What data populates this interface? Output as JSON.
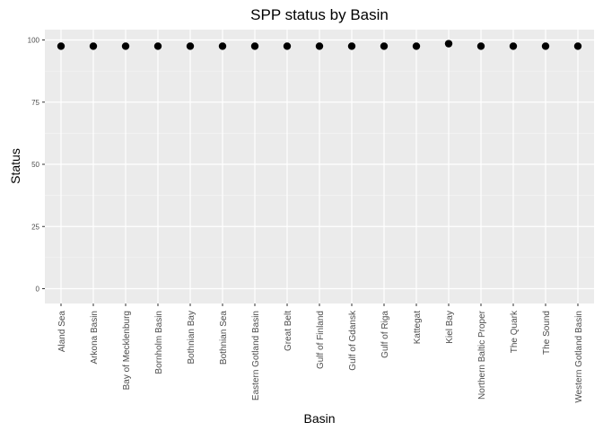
{
  "chart_data": {
    "type": "scatter",
    "title": "SPP status by Basin",
    "xlabel": "Basin",
    "ylabel": "Status",
    "categories": [
      "Aland Sea",
      "Arkona Basin",
      "Bay of Mecklenburg",
      "Bornholm Basin",
      "Bothnian Bay",
      "Bothnian Sea",
      "Eastern Gotland Basin",
      "Great Belt",
      "Gulf of Finland",
      "Gulf of Gdansk",
      "Gulf of Riga",
      "Kattegat",
      "Kiel Bay",
      "Northern Baltic Proper",
      "The Quark",
      "The Sound",
      "Western Gotland Basin"
    ],
    "values": [
      97.5,
      97.5,
      97.5,
      97.5,
      97.5,
      97.5,
      97.5,
      97.5,
      97.5,
      97.5,
      97.5,
      97.5,
      98.5,
      97.5,
      97.5,
      97.5,
      97.5
    ],
    "yticks": [
      0,
      25,
      50,
      75,
      100
    ],
    "ytick_labels": [
      "0",
      "25",
      "50",
      "75",
      "100"
    ],
    "ylim": [
      -5,
      102
    ],
    "grid": true,
    "colors": {
      "panel": "#ebebeb",
      "grid_major": "#ffffff",
      "point": "#000000",
      "tick": "#333333"
    }
  }
}
